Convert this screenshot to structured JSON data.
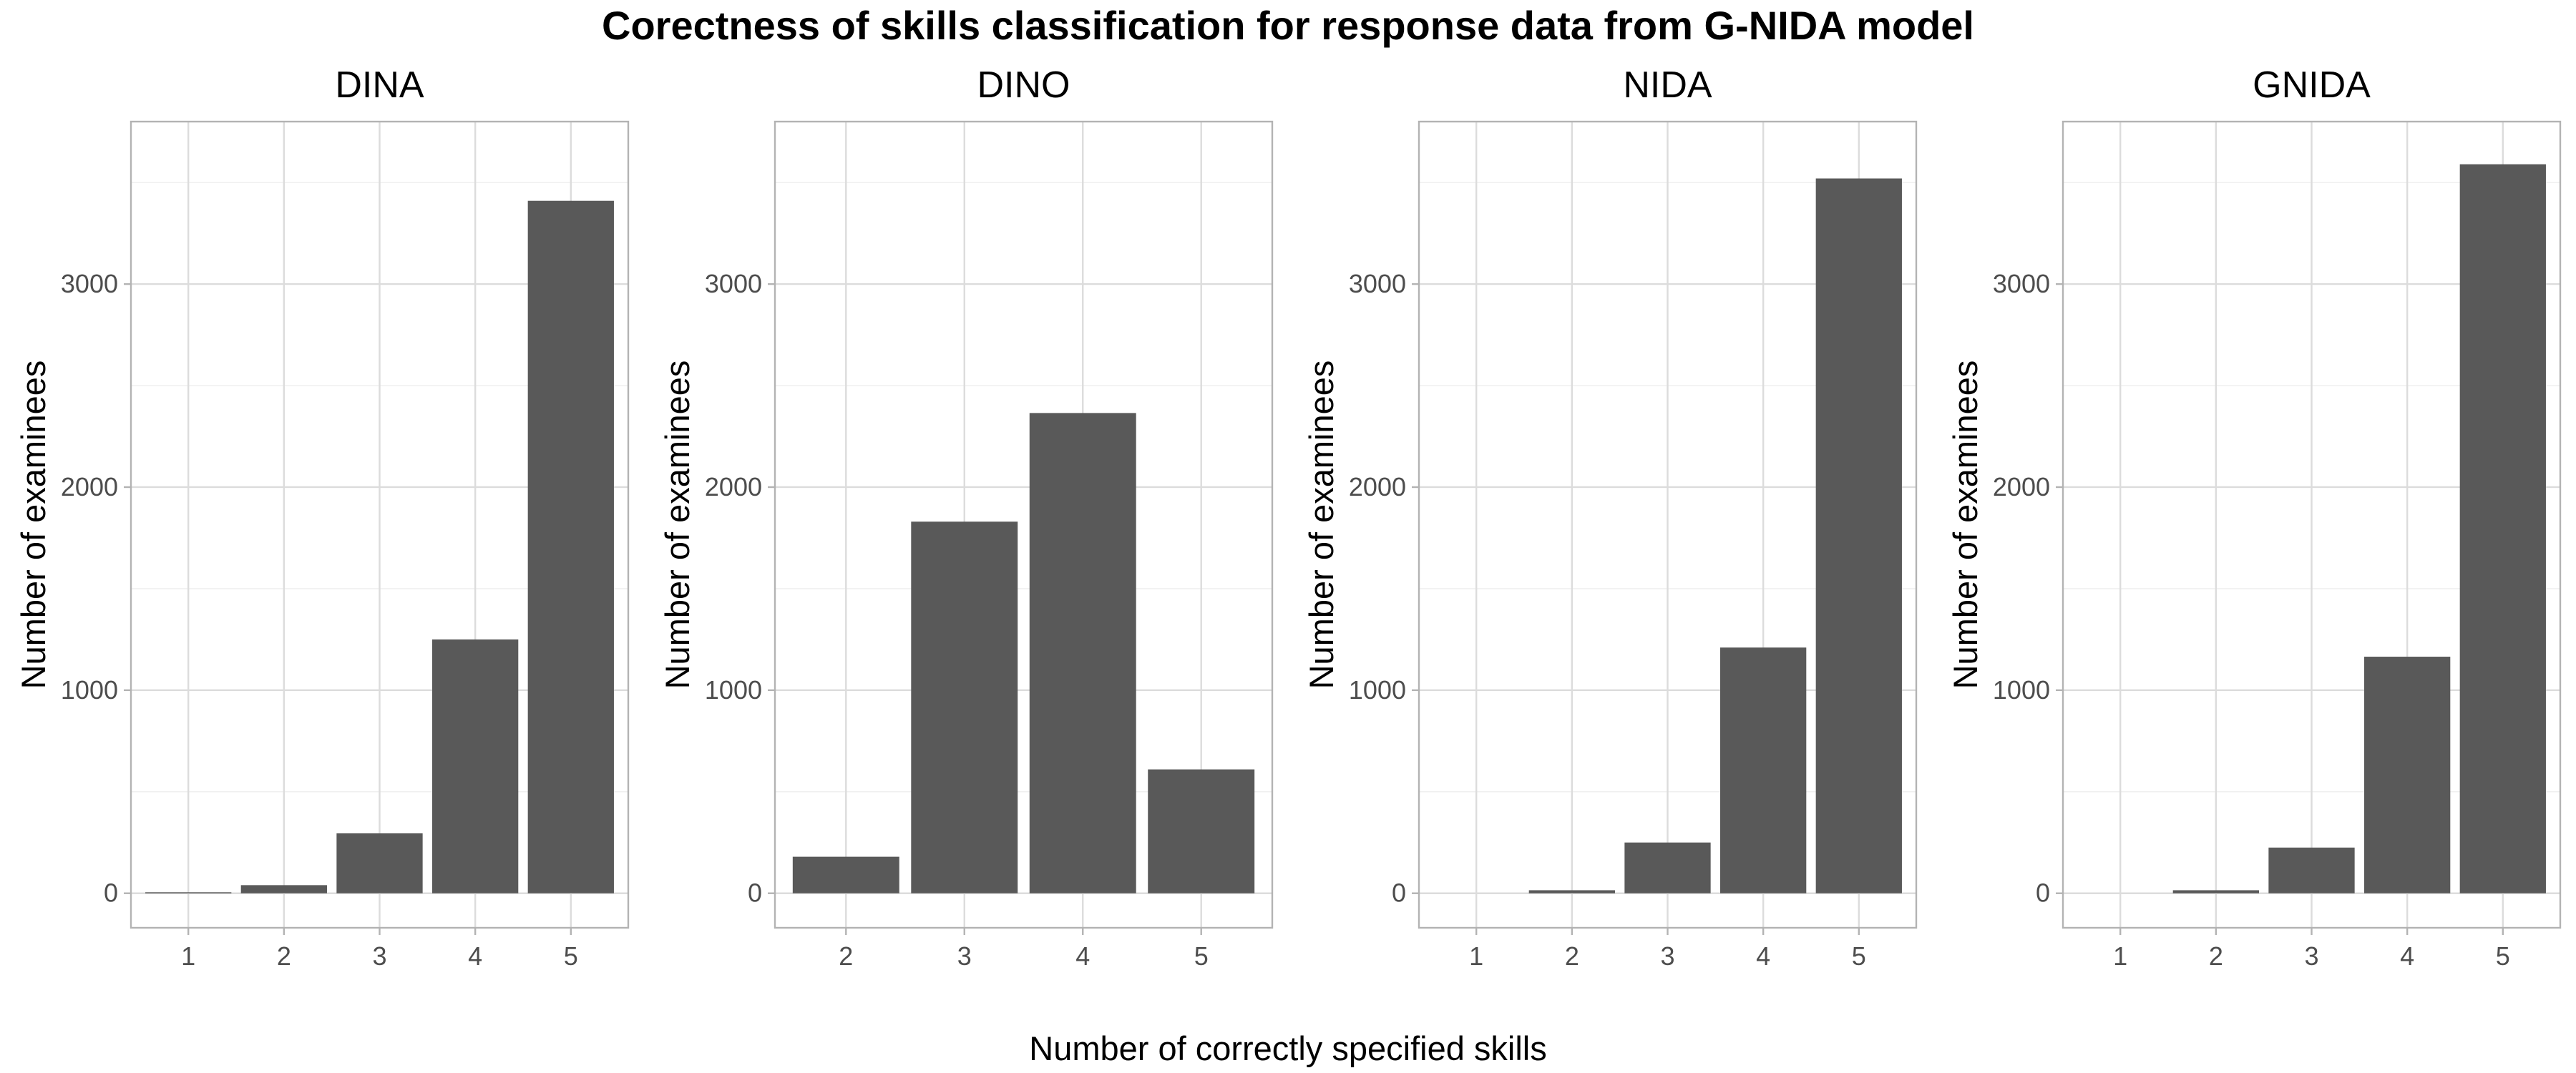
{
  "chart_data": {
    "type": "bar",
    "title": "Corectness of skills classification for response data from G-NIDA model",
    "xlabel": "Number of correctly specified skills",
    "ylabel": "Number of examinees",
    "ylim": [
      -170,
      3800
    ],
    "yticks": [
      0,
      1000,
      2000,
      3000
    ],
    "grid": true,
    "bar_color": "#595959",
    "panels": [
      {
        "title": "DINA",
        "categories": [
          "1",
          "2",
          "3",
          "4",
          "5"
        ],
        "values": [
          5,
          40,
          295,
          1250,
          3410
        ]
      },
      {
        "title": "DINO",
        "categories": [
          "2",
          "3",
          "4",
          "5"
        ],
        "values": [
          180,
          1830,
          2365,
          610
        ]
      },
      {
        "title": "NIDA",
        "categories": [
          "1",
          "2",
          "3",
          "4",
          "5"
        ],
        "values": [
          0,
          15,
          250,
          1210,
          3520
        ]
      },
      {
        "title": "GNIDA",
        "categories": [
          "1",
          "2",
          "3",
          "4",
          "5"
        ],
        "values": [
          0,
          15,
          225,
          1165,
          3590
        ]
      }
    ]
  }
}
